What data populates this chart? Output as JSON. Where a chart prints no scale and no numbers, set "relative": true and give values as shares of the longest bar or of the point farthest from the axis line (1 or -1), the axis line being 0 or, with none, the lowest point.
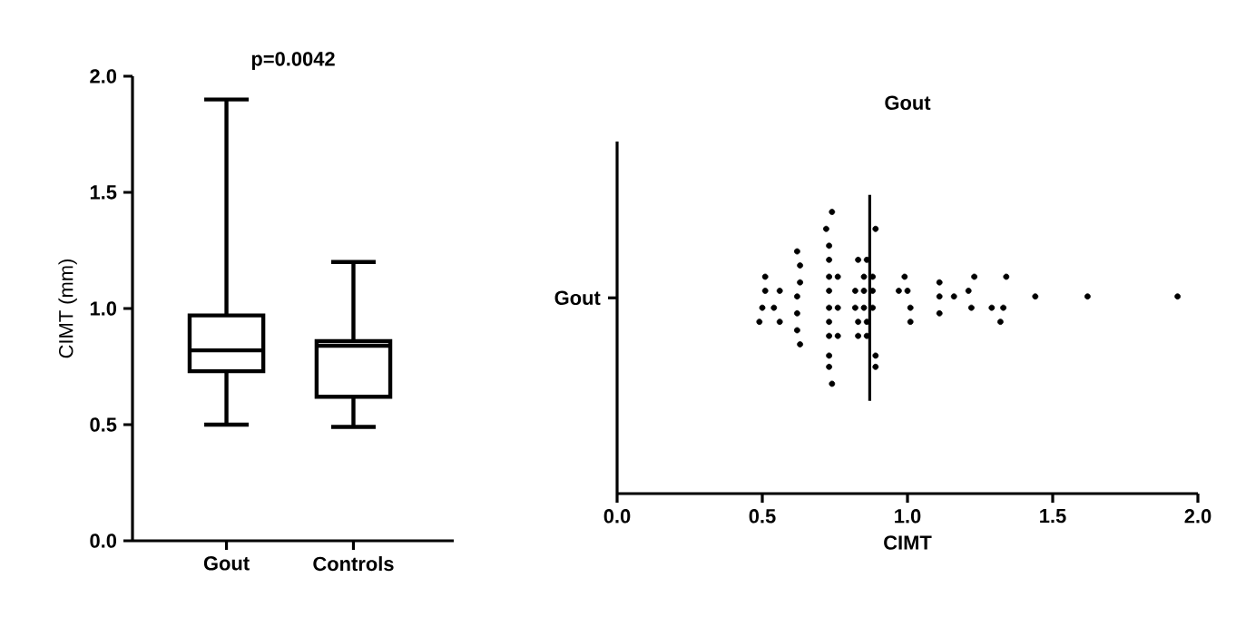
{
  "chart_data": [
    {
      "type": "box",
      "categories": [
        "Gout",
        "Controls"
      ],
      "ylabel": "CIMT (mm)",
      "annotations": [
        "p=0.0042"
      ],
      "boxes": [
        {
          "low": 0.5,
          "q1": 0.73,
          "median": 0.82,
          "q3": 0.97,
          "high": 1.9
        },
        {
          "low": 0.49,
          "q1": 0.62,
          "median": 0.84,
          "q3": 0.86,
          "high": 1.2
        }
      ],
      "ylim": [
        0,
        2
      ],
      "yticks": [
        {
          "value": 0,
          "label": "0.0"
        },
        {
          "value": 0.5,
          "label": "0.5"
        },
        {
          "value": 1,
          "label": "1.0"
        },
        {
          "value": 1.5,
          "label": "1.5"
        },
        {
          "value": 2,
          "label": "2.0"
        }
      ]
    },
    {
      "type": "scatter",
      "title": "Gout",
      "xlabel": "CIMT",
      "color": "#000000",
      "marker": "circle",
      "x": [
        0.51,
        0.51,
        0.5,
        0.49,
        0.54,
        0.56,
        0.56,
        0.62,
        0.63,
        0.63,
        0.62,
        0.62,
        0.62,
        0.63,
        0.74,
        0.72,
        0.73,
        0.73,
        0.73,
        0.76,
        0.73,
        0.73,
        0.76,
        0.73,
        0.73,
        0.76,
        0.73,
        0.73,
        0.74,
        0.83,
        0.86,
        0.85,
        0.88,
        0.82,
        0.85,
        0.88,
        0.82,
        0.85,
        0.88,
        0.83,
        0.86,
        0.83,
        0.86,
        0.89,
        0.89,
        0.89,
        0.99,
        0.97,
        1.0,
        1.01,
        1.01,
        1.11,
        1.11,
        1.11,
        1.16,
        1.23,
        1.21,
        1.22,
        1.29,
        1.33,
        1.34,
        1.32,
        1.44,
        1.62,
        1.93
      ],
      "values": [
        0.77,
        0.72,
        0.66,
        0.61,
        0.66,
        0.72,
        0.61,
        0.86,
        0.81,
        0.75,
        0.7,
        0.64,
        0.58,
        0.53,
        1,
        0.94,
        0.88,
        0.83,
        0.77,
        0.77,
        0.72,
        0.66,
        0.66,
        0.61,
        0.56,
        0.56,
        0.49,
        0.45,
        0.39,
        0.83,
        0.83,
        0.77,
        0.77,
        0.72,
        0.72,
        0.72,
        0.66,
        0.66,
        0.66,
        0.61,
        0.61,
        0.56,
        0.56,
        0.94,
        0.49,
        0.45,
        0.77,
        0.72,
        0.72,
        0.66,
        0.61,
        0.75,
        0.7,
        0.64,
        0.7,
        0.77,
        0.72,
        0.66,
        0.66,
        0.66,
        0.77,
        0.61,
        0.7,
        0.7,
        0.7
      ],
      "relative": true,
      "annotations": [
        "Gout"
      ],
      "ref_lines": [
        {
          "axis": "x",
          "value": 0.87
        }
      ],
      "xlim": [
        0,
        2
      ],
      "xticks": [
        {
          "value": 0,
          "label": "0.0"
        },
        {
          "value": 0.5,
          "label": "0.5"
        },
        {
          "value": 1,
          "label": "1.0"
        },
        {
          "value": 1.5,
          "label": "1.5"
        },
        {
          "value": 2,
          "label": "2.0"
        }
      ],
      "tick_labels": "x"
    }
  ]
}
